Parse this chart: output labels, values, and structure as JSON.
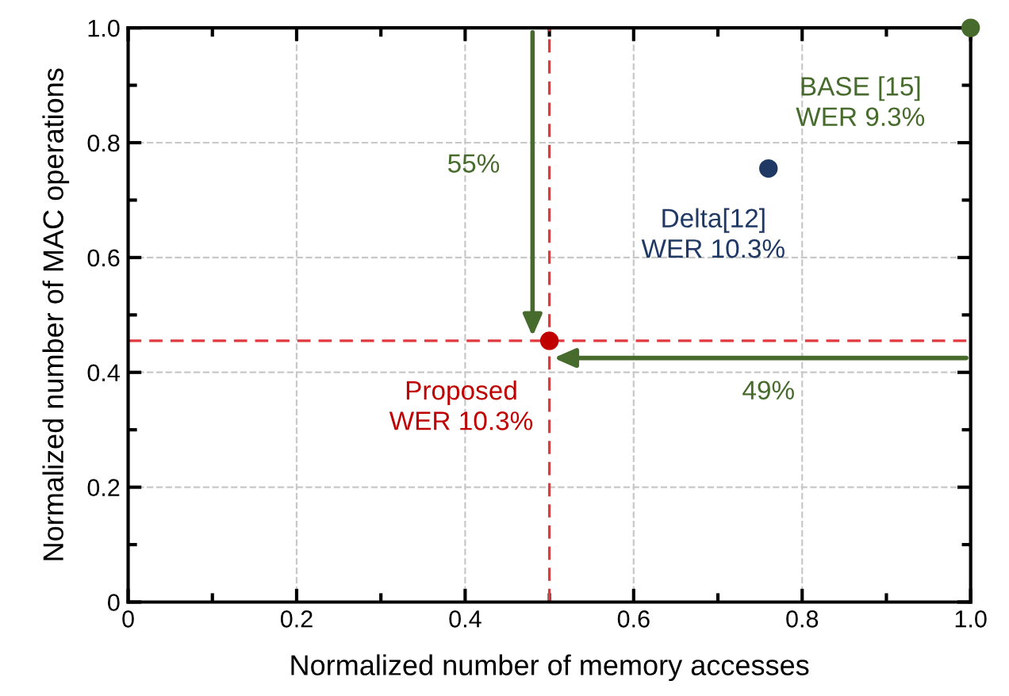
{
  "chart_data": {
    "type": "scatter",
    "xlabel": "Normalized number of memory accesses",
    "ylabel": "Normalized number of MAC operations",
    "series": [
      {
        "name": "BASE [15]\nWER 9.3%",
        "color": "#476b2c",
        "x": [
          1.0
        ],
        "values": [
          1.0
        ]
      },
      {
        "name": "Delta[12]\nWER 10.3%",
        "color": "#1f3864",
        "x": [
          0.76
        ],
        "values": [
          0.755
        ]
      },
      {
        "name": "Proposed\nWER 10.3%",
        "color": "#c00000",
        "x": [
          0.5
        ],
        "values": [
          0.455
        ]
      }
    ],
    "ref_lines": [
      {
        "axis": "x",
        "value": 0.5,
        "color": "#e0393e",
        "line_style": "dashed"
      },
      {
        "axis": "y",
        "value": 0.455,
        "color": "#e0393e",
        "line_style": "dashed"
      }
    ],
    "annotations": [
      "55%",
      "49%"
    ],
    "xlim": [
      0,
      1.0
    ],
    "ylim": [
      0,
      1.0
    ],
    "xticks": [
      0,
      0.2,
      0.4,
      0.6,
      0.8,
      {
        "value": 1,
        "label": "1.0"
      }
    ],
    "yticks": [
      0,
      0.2,
      0.4,
      0.6,
      0.8,
      {
        "value": 1,
        "label": "1.0"
      }
    ],
    "grid": true,
    "marker": "circle",
    "legend": false
  }
}
